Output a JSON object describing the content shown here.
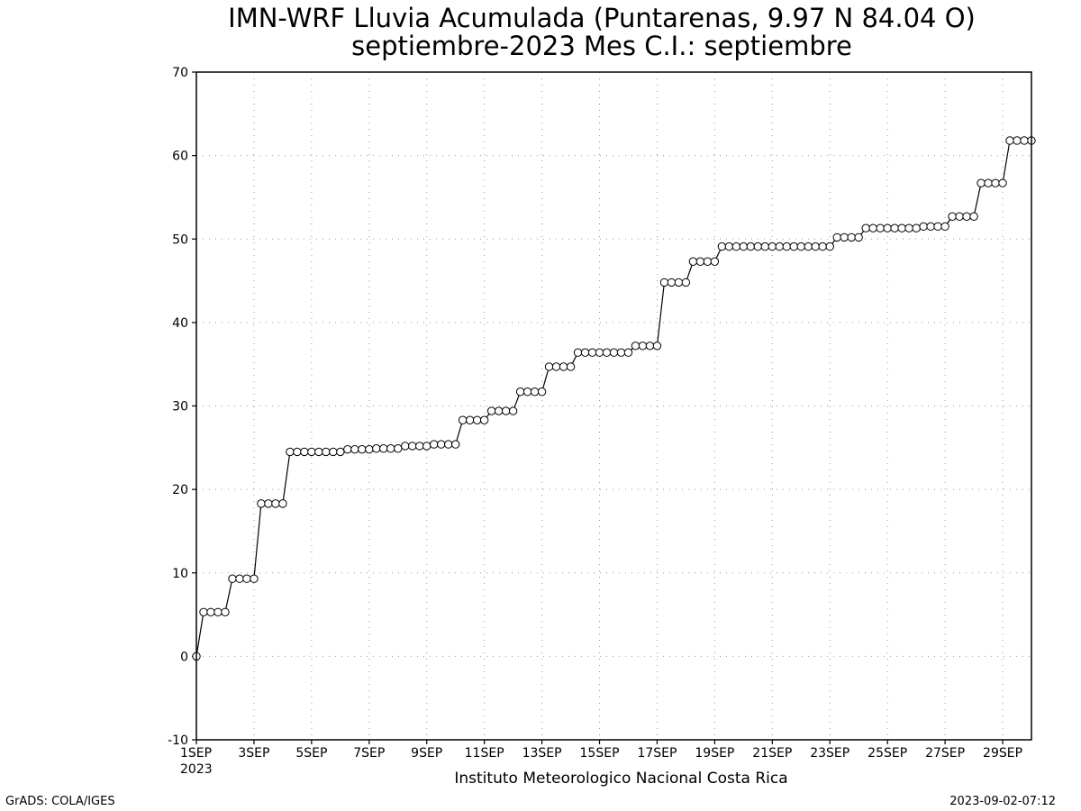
{
  "title_line1": "IMN-WRF  Lluvia Acumulada (Puntarenas, 9.97  N 84.04  O)",
  "title_line2": "septiembre-2023 Mes C.I.: septiembre",
  "footer": {
    "left": "GrADS: COLA/IGES",
    "right": "2023-09-02-07:12"
  },
  "chart_data": {
    "type": "line",
    "title": "IMN-WRF  Lluvia Acumulada (Puntarenas, 9.97  N 84.04  O) septiembre-2023 Mes C.I.: septiembre",
    "xlabel": "Instituto Meteorologico Nacional Costa Rica",
    "ylabel": "",
    "x_range_days": [
      1,
      30
    ],
    "ylim": [
      -10,
      70
    ],
    "yticks": [
      -10,
      0,
      10,
      20,
      30,
      40,
      50,
      60,
      70
    ],
    "xticks": [
      {
        "day": 1,
        "label": "1SEP",
        "sub": "2023"
      },
      {
        "day": 3,
        "label": "3SEP"
      },
      {
        "day": 5,
        "label": "5SEP"
      },
      {
        "day": 7,
        "label": "7SEP"
      },
      {
        "day": 9,
        "label": "9SEP"
      },
      {
        "day": 11,
        "label": "11SEP"
      },
      {
        "day": 13,
        "label": "13SEP"
      },
      {
        "day": 15,
        "label": "15SEP"
      },
      {
        "day": 17,
        "label": "17SEP"
      },
      {
        "day": 19,
        "label": "19SEP"
      },
      {
        "day": 21,
        "label": "21SEP"
      },
      {
        "day": 23,
        "label": "23SEP"
      },
      {
        "day": 25,
        "label": "25SEP"
      },
      {
        "day": 27,
        "label": "27SEP"
      },
      {
        "day": 29,
        "label": "29SEP"
      }
    ],
    "grid": true,
    "series": [
      {
        "marker": "open-circle",
        "values": [
          0,
          5.3,
          5.3,
          5.3,
          5.3,
          9.3,
          9.3,
          9.3,
          9.3,
          18.3,
          18.3,
          18.3,
          18.3,
          24.5,
          24.5,
          24.5,
          24.5,
          24.5,
          24.5,
          24.5,
          24.5,
          24.8,
          24.8,
          24.8,
          24.8,
          24.9,
          24.9,
          24.9,
          24.9,
          25.2,
          25.2,
          25.2,
          25.2,
          25.4,
          25.4,
          25.4,
          25.4,
          28.3,
          28.3,
          28.3,
          28.3,
          29.4,
          29.4,
          29.4,
          29.4,
          31.7,
          31.7,
          31.7,
          31.7,
          34.7,
          34.7,
          34.7,
          34.7,
          36.4,
          36.4,
          36.4,
          36.4,
          36.4,
          36.4,
          36.4,
          36.4,
          37.2,
          37.2,
          37.2,
          37.2,
          44.8,
          44.8,
          44.8,
          44.8,
          47.3,
          47.3,
          47.3,
          47.3,
          49.1,
          49.1,
          49.1,
          49.1,
          49.1,
          49.1,
          49.1,
          49.1,
          49.1,
          49.1,
          49.1,
          49.1,
          49.1,
          49.1,
          49.1,
          49.1,
          50.2,
          50.2,
          50.2,
          50.2,
          51.3,
          51.3,
          51.3,
          51.3,
          51.3,
          51.3,
          51.3,
          51.3,
          51.5,
          51.5,
          51.5,
          51.5,
          52.7,
          52.7,
          52.7,
          52.7,
          56.7,
          56.7,
          56.7,
          56.7,
          61.8,
          61.8,
          61.8,
          61.8
        ]
      }
    ],
    "step_hours": 6,
    "colors": {
      "line": "#000000",
      "marker_fill": "#ffffff",
      "grid": "#999999"
    }
  }
}
